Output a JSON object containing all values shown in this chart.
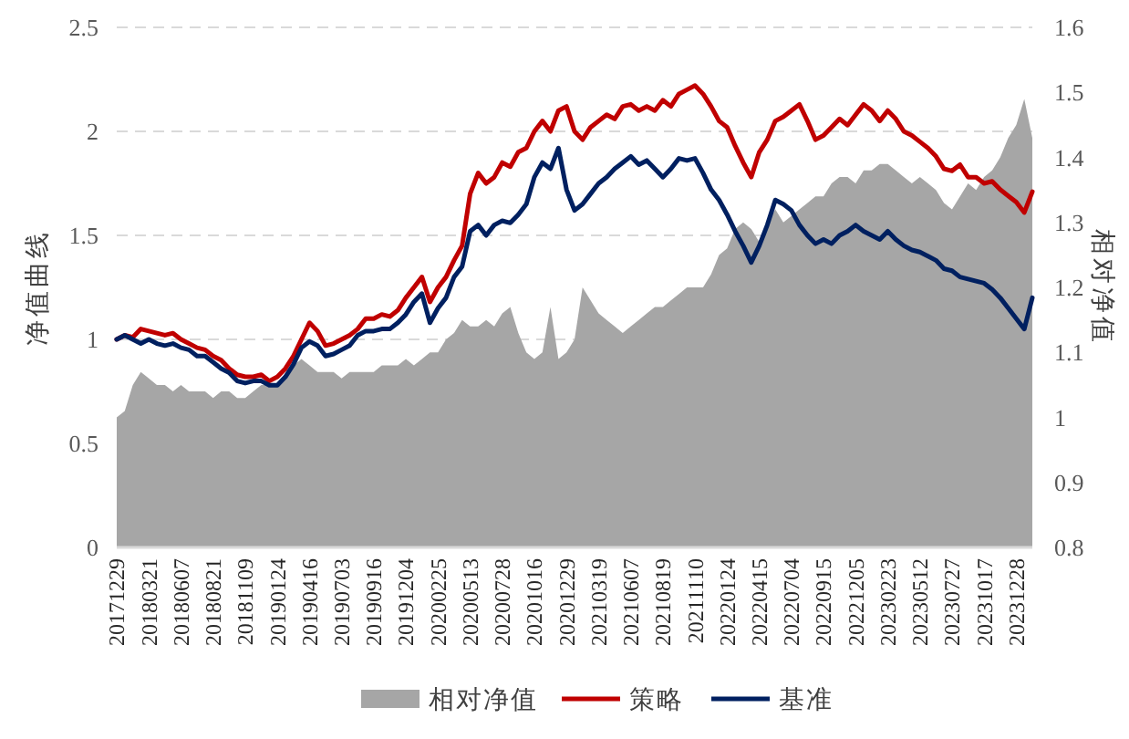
{
  "chart_data": {
    "type": "line",
    "ylabel": "净值曲线",
    "y2label": "相对净值",
    "categories": [
      "20171229",
      null,
      null,
      null,
      "20180321",
      null,
      null,
      null,
      "20180607",
      null,
      null,
      null,
      "20180821",
      null,
      null,
      null,
      "20181109",
      null,
      null,
      null,
      "20190124",
      null,
      null,
      null,
      "20190416",
      null,
      null,
      null,
      "20190703",
      null,
      null,
      null,
      "20190916",
      null,
      null,
      null,
      "20191204",
      null,
      null,
      null,
      "20200225",
      null,
      null,
      null,
      "20200513",
      null,
      null,
      null,
      "20200728",
      null,
      null,
      null,
      "20201016",
      null,
      null,
      null,
      "20201229",
      null,
      null,
      null,
      "20210319",
      null,
      null,
      null,
      "20210607",
      null,
      null,
      null,
      "20210819",
      null,
      null,
      null,
      "20211110",
      null,
      null,
      null,
      "20220124",
      null,
      null,
      null,
      "20220415",
      null,
      null,
      null,
      "20220704",
      null,
      null,
      null,
      "20220915",
      null,
      null,
      null,
      "20221205",
      null,
      null,
      null,
      "20230223",
      null,
      null,
      null,
      "20230512",
      null,
      null,
      null,
      "20230727",
      null,
      null,
      null,
      "20231017",
      null,
      null,
      null,
      "20231228",
      null,
      null
    ],
    "series": [
      {
        "name": "相对净值",
        "type": "area",
        "axis": "y2",
        "color": "#a6a6a6",
        "values": [
          1.0,
          1.01,
          1.05,
          1.07,
          1.06,
          1.05,
          1.05,
          1.04,
          1.05,
          1.04,
          1.04,
          1.04,
          1.03,
          1.04,
          1.04,
          1.03,
          1.03,
          1.04,
          1.05,
          1.05,
          1.05,
          1.06,
          1.08,
          1.09,
          1.08,
          1.07,
          1.07,
          1.07,
          1.06,
          1.07,
          1.07,
          1.07,
          1.07,
          1.08,
          1.08,
          1.08,
          1.09,
          1.08,
          1.09,
          1.1,
          1.1,
          1.12,
          1.13,
          1.15,
          1.14,
          1.14,
          1.15,
          1.14,
          1.16,
          1.17,
          1.13,
          1.1,
          1.09,
          1.1,
          1.17,
          1.09,
          1.1,
          1.12,
          1.2,
          1.18,
          1.16,
          1.15,
          1.14,
          1.13,
          1.14,
          1.15,
          1.16,
          1.17,
          1.17,
          1.18,
          1.19,
          1.2,
          1.2,
          1.2,
          1.22,
          1.25,
          1.26,
          1.29,
          1.3,
          1.29,
          1.27,
          1.3,
          1.32,
          1.3,
          1.31,
          1.32,
          1.33,
          1.34,
          1.34,
          1.36,
          1.37,
          1.37,
          1.36,
          1.38,
          1.38,
          1.39,
          1.39,
          1.38,
          1.37,
          1.36,
          1.37,
          1.36,
          1.35,
          1.33,
          1.32,
          1.34,
          1.36,
          1.35,
          1.37,
          1.38,
          1.4,
          1.43,
          1.45,
          1.49,
          1.43
        ]
      },
      {
        "name": "策略",
        "color": "#c00000",
        "values": [
          1.0,
          1.02,
          1.01,
          1.05,
          1.04,
          1.03,
          1.02,
          1.03,
          1.0,
          0.98,
          0.96,
          0.95,
          0.92,
          0.9,
          0.86,
          0.83,
          0.82,
          0.82,
          0.83,
          0.8,
          0.82,
          0.86,
          0.92,
          1.0,
          1.08,
          1.04,
          0.97,
          0.98,
          1.0,
          1.02,
          1.05,
          1.1,
          1.1,
          1.12,
          1.11,
          1.14,
          1.2,
          1.25,
          1.3,
          1.18,
          1.25,
          1.3,
          1.38,
          1.45,
          1.7,
          1.8,
          1.75,
          1.78,
          1.85,
          1.83,
          1.9,
          1.92,
          2.0,
          2.05,
          2.0,
          2.1,
          2.12,
          2.0,
          1.96,
          2.02,
          2.05,
          2.08,
          2.06,
          2.12,
          2.13,
          2.1,
          2.12,
          2.1,
          2.15,
          2.12,
          2.18,
          2.2,
          2.22,
          2.18,
          2.12,
          2.05,
          2.02,
          1.93,
          1.85,
          1.78,
          1.9,
          1.96,
          2.05,
          2.07,
          2.1,
          2.13,
          2.05,
          1.96,
          1.98,
          2.02,
          2.06,
          2.03,
          2.08,
          2.13,
          2.1,
          2.05,
          2.1,
          2.06,
          2.0,
          1.98,
          1.95,
          1.92,
          1.88,
          1.82,
          1.81,
          1.84,
          1.78,
          1.78,
          1.75,
          1.76,
          1.72,
          1.69,
          1.66,
          1.61,
          1.71
        ]
      },
      {
        "name": "基准",
        "color": "#002060",
        "values": [
          1.0,
          1.02,
          1.0,
          0.98,
          1.0,
          0.98,
          0.97,
          0.98,
          0.96,
          0.95,
          0.92,
          0.92,
          0.89,
          0.86,
          0.84,
          0.8,
          0.79,
          0.8,
          0.8,
          0.78,
          0.78,
          0.82,
          0.88,
          0.96,
          0.99,
          0.97,
          0.92,
          0.93,
          0.95,
          0.97,
          1.02,
          1.04,
          1.04,
          1.05,
          1.05,
          1.08,
          1.12,
          1.18,
          1.22,
          1.08,
          1.15,
          1.2,
          1.3,
          1.35,
          1.52,
          1.55,
          1.5,
          1.55,
          1.57,
          1.56,
          1.6,
          1.65,
          1.78,
          1.85,
          1.82,
          1.92,
          1.72,
          1.62,
          1.65,
          1.7,
          1.75,
          1.78,
          1.82,
          1.85,
          1.88,
          1.84,
          1.86,
          1.82,
          1.78,
          1.82,
          1.87,
          1.86,
          1.87,
          1.8,
          1.72,
          1.67,
          1.6,
          1.52,
          1.45,
          1.37,
          1.45,
          1.55,
          1.67,
          1.65,
          1.62,
          1.55,
          1.5,
          1.46,
          1.48,
          1.46,
          1.5,
          1.52,
          1.55,
          1.52,
          1.5,
          1.48,
          1.52,
          1.48,
          1.45,
          1.43,
          1.42,
          1.4,
          1.38,
          1.34,
          1.33,
          1.3,
          1.29,
          1.28,
          1.27,
          1.24,
          1.2,
          1.15,
          1.1,
          1.05,
          1.2
        ]
      }
    ],
    "ylim": [
      0,
      2.5
    ],
    "yticks": [
      0,
      0.5,
      1,
      1.5,
      2,
      2.5
    ],
    "y2lim": [
      0.8,
      1.6
    ],
    "y2ticks": [
      0.8,
      0.9,
      1,
      1.1,
      1.2,
      1.3,
      1.4,
      1.5,
      1.6
    ],
    "grid": "y",
    "legend": "bottom"
  }
}
